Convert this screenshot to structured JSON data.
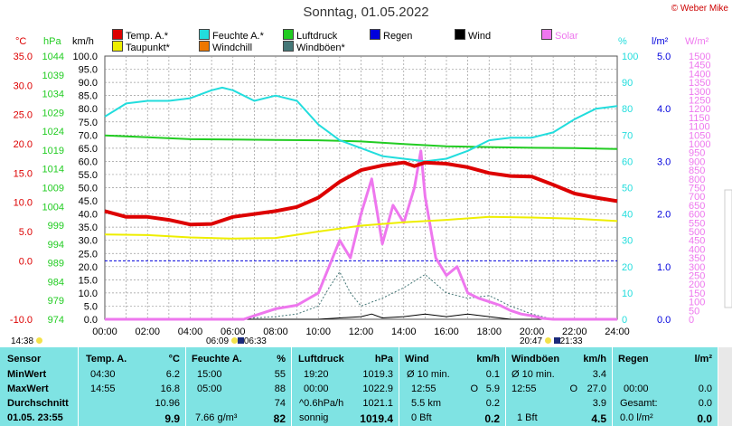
{
  "title": "Sonntag, 01.05.2022",
  "credit": "© Weber Mike",
  "legend": [
    {
      "label": "Temp. A.*",
      "color": "#dd0000"
    },
    {
      "label": "Feuchte A.*",
      "color": "#22dddd"
    },
    {
      "label": "Luftdruck",
      "color": "#22cc22"
    },
    {
      "label": "Wind",
      "color": "#000000"
    },
    {
      "label": "Solar",
      "color": "#ee77ee"
    },
    {
      "label": "Taupunkt*",
      "color": "#eeee00"
    },
    {
      "label": "Windchill",
      "color": "#ee7700"
    },
    {
      "label": "Windböen*",
      "color": "#447777"
    },
    {
      "label": "Regen",
      "color": "#0000dd"
    }
  ],
  "units": {
    "temp": "°C",
    "press": "hPa",
    "wind": "km/h",
    "hum": "%",
    "rain": "l/m²",
    "solar": "W/m²"
  },
  "sun": {
    "rise": "06:09",
    "rise_alt": "06:33",
    "set": "20:47",
    "set_alt": "21:33",
    "left_time": "14:38"
  },
  "colors": {
    "temp": "#dd0000",
    "hum": "#22dddd",
    "press": "#22cc22",
    "dew": "#eeee00",
    "solar": "#ee77ee",
    "gust": "#447777",
    "wind": "#000000",
    "rain": "#0000dd",
    "stats_bg": "#7fe3e3"
  },
  "chart_data": {
    "type": "line",
    "x_ticks": [
      "00:00",
      "02:00",
      "04:00",
      "06:00",
      "08:00",
      "10:00",
      "12:00",
      "14:00",
      "16:00",
      "18:00",
      "20:00",
      "22:00",
      "24:00"
    ],
    "xlim": [
      0,
      24
    ],
    "axes": {
      "temp": {
        "ylim": [
          -10,
          35
        ],
        "ticks": [
          "35.0",
          "30.0",
          "25.0",
          "20.0",
          "15.0",
          "10.0",
          "5.0",
          "0.0",
          "-10.0"
        ],
        "tick_values": [
          35,
          30,
          25,
          20,
          15,
          10,
          5,
          0,
          -10
        ]
      },
      "press": {
        "ylim": [
          974,
          1044
        ],
        "ticks": [
          "1044",
          "1039",
          "1034",
          "1029",
          "1024",
          "1019",
          "1014",
          "1009",
          "1004",
          "999",
          "994",
          "989",
          "984",
          "979",
          "974"
        ]
      },
      "wind": {
        "ylim": [
          0,
          100
        ],
        "ticks": [
          "100.0",
          "95.0",
          "90.0",
          "85.0",
          "80.0",
          "75.0",
          "70.0",
          "65.0",
          "60.0",
          "55.0",
          "50.0",
          "45.0",
          "40.0",
          "35.0",
          "30.0",
          "25.0",
          "20.0",
          "15.0",
          "10.0",
          "5.0",
          "0.0"
        ]
      },
      "hum": {
        "ylim": [
          0,
          100
        ],
        "ticks": [
          "100",
          "90",
          "80",
          "70",
          "60",
          "50",
          "40",
          "30",
          "20",
          "10",
          "0"
        ]
      },
      "rain": {
        "ylim": [
          0,
          5
        ],
        "ticks": [
          "5.0",
          "4.0",
          "3.0",
          "2.0",
          "1.0",
          "0.0"
        ]
      },
      "solar": {
        "ylim": [
          0,
          1500
        ],
        "ticks": [
          "1500",
          "1450",
          "1400",
          "1350",
          "1300",
          "1250",
          "1200",
          "1150",
          "1100",
          "1050",
          "1000",
          "950",
          "900",
          "850",
          "800",
          "750",
          "700",
          "650",
          "600",
          "550",
          "500",
          "450",
          "400",
          "350",
          "300",
          "250",
          "200",
          "150",
          "100",
          "50",
          "0"
        ]
      }
    },
    "series": [
      {
        "name": "Temp. A.*",
        "axis": "temp",
        "x": [
          0,
          1,
          2,
          3,
          4,
          5,
          6,
          7,
          8,
          9,
          10,
          11,
          12,
          13,
          14,
          14.5,
          15,
          16,
          17,
          18,
          19,
          20,
          21,
          22,
          23,
          24
        ],
        "y": [
          8.5,
          7.5,
          7.5,
          7.0,
          6.2,
          6.3,
          7.5,
          8.0,
          8.5,
          9.2,
          10.8,
          13.5,
          15.5,
          16.3,
          16.8,
          16.2,
          16.8,
          16.6,
          16.0,
          15.0,
          14.5,
          14.4,
          13.0,
          11.5,
          10.8,
          10.2
        ]
      },
      {
        "name": "Feuchte A.*",
        "axis": "hum",
        "x": [
          0,
          1,
          2,
          3,
          4,
          5,
          5.5,
          6,
          7,
          8,
          9,
          10,
          11,
          12,
          13,
          14,
          15,
          16,
          17,
          18,
          19,
          20,
          21,
          22,
          23,
          24
        ],
        "y": [
          77,
          82,
          83,
          83,
          84,
          87,
          88,
          87,
          83,
          85,
          83,
          74,
          68,
          65,
          62,
          61,
          60,
          61,
          64,
          68,
          69,
          69,
          71,
          76,
          80,
          81
        ]
      },
      {
        "name": "Luftdruck",
        "axis": "press",
        "x": [
          0,
          2,
          4,
          6,
          8,
          10,
          12,
          14,
          16,
          18,
          20,
          22,
          24
        ],
        "y": [
          1022.9,
          1022.4,
          1021.9,
          1021.8,
          1021.7,
          1021.6,
          1021.3,
          1020.6,
          1020.0,
          1019.8,
          1019.6,
          1019.5,
          1019.3
        ]
      },
      {
        "name": "Taupunkt*",
        "axis": "temp",
        "x": [
          0,
          2,
          4,
          6,
          8,
          10,
          12,
          14,
          16,
          18,
          20,
          22,
          24
        ],
        "y": [
          4.5,
          4.4,
          4.0,
          3.8,
          3.9,
          5.0,
          6.0,
          6.6,
          7.0,
          7.5,
          7.4,
          7.2,
          6.8
        ]
      },
      {
        "name": "Solar",
        "axis": "solar",
        "x": [
          0,
          6.5,
          7,
          8,
          9,
          10,
          10.5,
          11,
          11.5,
          12,
          12.5,
          13,
          13.5,
          14,
          14.5,
          14.8,
          15,
          15.5,
          16,
          16.5,
          17,
          17.5,
          18,
          18.5,
          19,
          19.5,
          20,
          20.5,
          21,
          24
        ],
        "y": [
          0,
          0,
          20,
          60,
          80,
          150,
          300,
          450,
          350,
          600,
          800,
          430,
          650,
          550,
          750,
          960,
          700,
          350,
          250,
          300,
          150,
          120,
          100,
          80,
          50,
          30,
          20,
          5,
          0,
          0
        ]
      },
      {
        "name": "Windböen*",
        "axis": "wind",
        "x": [
          0,
          6,
          8,
          9,
          10,
          10.5,
          11,
          11.5,
          12,
          13,
          14,
          15,
          16,
          17,
          18,
          19,
          20,
          21,
          24
        ],
        "y": [
          0,
          0,
          1,
          2,
          5,
          12,
          18,
          10,
          5,
          8,
          12,
          17,
          10,
          8,
          9,
          5,
          2,
          0,
          0
        ]
      },
      {
        "name": "Wind",
        "axis": "wind",
        "x": [
          0,
          10,
          12,
          12.5,
          13,
          14,
          15,
          16,
          17,
          18,
          19,
          24
        ],
        "y": [
          0,
          0,
          1,
          2,
          0.5,
          1,
          2,
          1,
          2,
          1,
          0,
          0
        ]
      }
    ]
  },
  "stats": {
    "sensor": {
      "h": "Sensor",
      "rows": [
        "MinWert",
        "MaxWert",
        "Durchschnitt",
        "01.05. 23:55"
      ]
    },
    "temp": {
      "h": "Temp. A.",
      "u": "°C",
      "t": [
        "04:30",
        "14:55",
        "",
        ""
      ],
      "v": [
        "6.2",
        "16.8",
        "10.96",
        "9.9"
      ]
    },
    "hum": {
      "h": "Feuchte A.",
      "u": "%",
      "t": [
        "15:00",
        "05:00",
        "",
        "7.66 g/m³"
      ],
      "v": [
        "55",
        "88",
        "74",
        "82"
      ]
    },
    "press": {
      "h": "Luftdruck",
      "u": "hPa",
      "t": [
        "19:20",
        "00:00",
        "^0.6hPa/h",
        "sonnig"
      ],
      "v": [
        "1019.3",
        "1022.9",
        "1021.1",
        "1019.4"
      ]
    },
    "wind": {
      "h": "Wind",
      "u": "km/h",
      "t": [
        "Ø 10 min.",
        "12:55",
        "5.5 km",
        "0 Bft"
      ],
      "d": [
        "",
        "O",
        "",
        ""
      ],
      "v": [
        "0.1",
        "5.9",
        "0.2",
        "0.2"
      ]
    },
    "gust": {
      "h": "Windböen",
      "u": "km/h",
      "t": [
        "Ø 10 min.",
        "12:55",
        "",
        "1 Bft"
      ],
      "d": [
        "",
        "O",
        "",
        ""
      ],
      "v": [
        "3.4",
        "27.0",
        "3.9",
        "4.5"
      ]
    },
    "rain": {
      "h": "Regen",
      "u": "l/m²",
      "t": [
        "",
        "00:00",
        "Gesamt:",
        "0.0 l/m²"
      ],
      "v": [
        "",
        "0.0",
        "0.0",
        "0.0"
      ]
    }
  }
}
